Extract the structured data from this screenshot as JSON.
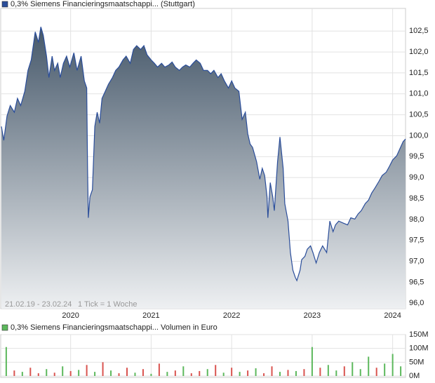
{
  "chart_data": [
    {
      "type": "area",
      "series": [
        {
          "name": "0,3% Siemens Financieringsmaatschappi... (Stuttgart)",
          "color": "#2a4d9a",
          "values": [
            100.22,
            99.89,
            100.47,
            100.72,
            100.56,
            100.89,
            100.72,
            101.06,
            101.56,
            101.81,
            102.48,
            102.23,
            102.6,
            102.4,
            101.9,
            101.39,
            101.9,
            101.56,
            101.73,
            101.39,
            101.73,
            101.9,
            101.64,
            101.98,
            101.56,
            101.9,
            101.31,
            101.14,
            99.22,
            98.04,
            98.54,
            98.71,
            100.22,
            100.56,
            100.3,
            100.89,
            101.06,
            101.23,
            101.39,
            101.56,
            101.64,
            101.81,
            101.9,
            101.73,
            102.06,
            102.15,
            102.06,
            102.15,
            101.93,
            101.81,
            101.73,
            101.64,
            101.73,
            101.64,
            101.69,
            101.76,
            101.64,
            101.56,
            101.64,
            101.69,
            101.64,
            101.73,
            101.81,
            101.73,
            101.56,
            101.56,
            101.48,
            101.56,
            101.39,
            101.48,
            101.31,
            101.14,
            101.31,
            101.14,
            101.06,
            100.39,
            100.56,
            100.05,
            99.8,
            99.72,
            99.38,
            98.96,
            99.22,
            99.05,
            98.54,
            98.04,
            98.88,
            98.54,
            98.21,
            99.38,
            99.97,
            99.22,
            98.38,
            97.96,
            97.21,
            96.79,
            96.62,
            96.54,
            96.79,
            97.04,
            97.12,
            97.29,
            97.37,
            97.21,
            96.96,
            97.21,
            97.37,
            97.21,
            97.96,
            97.71,
            97.87,
            97.96,
            97.91,
            97.87,
            98.04,
            98.01,
            98.13,
            98.21,
            98.38,
            98.46,
            98.63,
            98.75,
            98.91,
            99.05,
            99.13,
            99.27,
            99.42,
            99.52,
            99.69,
            99.86,
            99.92
          ]
        }
      ],
      "x": [
        2019.14,
        2019.17,
        2019.21,
        2019.25,
        2019.3,
        2019.34,
        2019.38,
        2019.43,
        2019.47,
        2019.51,
        2019.56,
        2019.6,
        2019.63,
        2019.66,
        2019.7,
        2019.73,
        2019.77,
        2019.8,
        2019.84,
        2019.87,
        2019.91,
        2019.95,
        2019.99,
        2020.04,
        2020.08,
        2020.13,
        2020.17,
        2020.2,
        2020.21,
        2020.22,
        2020.24,
        2020.27,
        2020.3,
        2020.33,
        2020.36,
        2020.39,
        2020.43,
        2020.47,
        2020.52,
        2020.56,
        2020.6,
        2020.65,
        2020.69,
        2020.74,
        2020.78,
        2020.82,
        2020.87,
        2020.91,
        2020.95,
        2021.0,
        2021.04,
        2021.08,
        2021.13,
        2021.17,
        2021.22,
        2021.26,
        2021.3,
        2021.35,
        2021.39,
        2021.43,
        2021.48,
        2021.52,
        2021.56,
        2021.61,
        2021.65,
        2021.7,
        2021.74,
        2021.78,
        2021.83,
        2021.87,
        2021.91,
        2021.96,
        2022.0,
        2022.04,
        2022.09,
        2022.13,
        2022.17,
        2022.2,
        2022.23,
        2022.26,
        2022.31,
        2022.35,
        2022.38,
        2022.41,
        2022.44,
        2022.45,
        2022.48,
        2022.51,
        2022.53,
        2022.57,
        2022.6,
        2022.64,
        2022.66,
        2022.7,
        2022.73,
        2022.76,
        2022.79,
        2022.81,
        2022.85,
        2022.87,
        2022.91,
        2022.94,
        2022.98,
        2023.01,
        2023.05,
        2023.09,
        2023.13,
        2023.18,
        2023.22,
        2023.26,
        2023.29,
        2023.33,
        2023.39,
        2023.44,
        2023.48,
        2023.53,
        2023.57,
        2023.61,
        2023.66,
        2023.7,
        2023.74,
        2023.78,
        2023.83,
        2023.87,
        2023.92,
        2023.96,
        2024.0,
        2024.05,
        2024.09,
        2024.13,
        2024.16
      ],
      "xlim": [
        2019.14,
        2024.16
      ],
      "xticks": [
        2020,
        2021,
        2022,
        2023,
        2024
      ],
      "show_xtick_labels": true,
      "ylim": [
        95.87,
        103.04
      ],
      "yticks": [
        {
          "value": 96.0,
          "label": "96,0"
        },
        {
          "value": 96.5,
          "label": "96,5"
        },
        {
          "value": 97.0,
          "label": "97,0"
        },
        {
          "value": 97.5,
          "label": "97,5"
        },
        {
          "value": 98.0,
          "label": "98,0"
        },
        {
          "value": 98.5,
          "label": "98,5"
        },
        {
          "value": 99.0,
          "label": "99,0"
        },
        {
          "value": 99.5,
          "label": "99,5"
        },
        {
          "value": 100.0,
          "label": "100,0"
        },
        {
          "value": 100.5,
          "label": "100,5"
        },
        {
          "value": 101.0,
          "label": "101,0"
        },
        {
          "value": 101.5,
          "label": "101,5"
        },
        {
          "value": 102.0,
          "label": "102,0"
        },
        {
          "value": 102.5,
          "label": "102,5"
        }
      ],
      "grid": true,
      "annotations": [
        "21.02.19 - 23.02.24",
        "1 Tick = 1 Woche"
      ]
    },
    {
      "type": "bar",
      "series": [
        {
          "name": "0,3% Siemens Financieringsmaatschappi... Volumen in Euro",
          "color": "#5cb85c",
          "values": [
            105,
            20,
            15,
            30,
            10,
            25,
            12,
            35,
            18,
            22,
            40,
            15,
            50,
            20,
            10,
            30,
            12,
            25,
            8,
            45,
            15,
            20,
            35,
            10,
            18,
            25,
            40,
            12,
            30,
            15,
            20,
            28,
            10,
            35,
            15,
            22,
            18,
            25,
            105,
            30,
            40,
            20,
            35,
            50,
            25,
            70,
            30,
            45,
            80,
            35
          ]
        }
      ],
      "bar_colors": [
        "#5cb85c",
        "#d9534f",
        "#5cb85c",
        "#d9534f",
        "#d9534f",
        "#5cb85c",
        "#d9534f",
        "#5cb85c",
        "#d9534f",
        "#5cb85c",
        "#d9534f",
        "#5cb85c",
        "#d9534f",
        "#5cb85c",
        "#d9534f",
        "#d9534f",
        "#5cb85c",
        "#d9534f",
        "#5cb85c",
        "#d9534f",
        "#5cb85c",
        "#d9534f",
        "#5cb85c",
        "#d9534f",
        "#d9534f",
        "#5cb85c",
        "#d9534f",
        "#5cb85c",
        "#d9534f",
        "#5cb85c",
        "#d9534f",
        "#5cb85c",
        "#d9534f",
        "#d9534f",
        "#5cb85c",
        "#d9534f",
        "#5cb85c",
        "#d9534f",
        "#5cb85c",
        "#d9534f",
        "#5cb85c",
        "#5cb85c",
        "#d9534f",
        "#5cb85c",
        "#5cb85c",
        "#5cb85c",
        "#d9534f",
        "#5cb85c",
        "#5cb85c",
        "#5cb85c"
      ],
      "x": [
        2019.2,
        2019.3,
        2019.4,
        2019.5,
        2019.6,
        2019.7,
        2019.8,
        2019.9,
        2020.0,
        2020.1,
        2020.2,
        2020.3,
        2020.4,
        2020.5,
        2020.6,
        2020.7,
        2020.8,
        2020.9,
        2021.0,
        2021.1,
        2021.2,
        2021.3,
        2021.4,
        2021.5,
        2021.6,
        2021.7,
        2021.8,
        2021.9,
        2022.0,
        2022.1,
        2022.2,
        2022.3,
        2022.4,
        2022.5,
        2022.6,
        2022.7,
        2022.8,
        2022.9,
        2023.0,
        2023.1,
        2023.2,
        2023.3,
        2023.4,
        2023.5,
        2023.6,
        2023.7,
        2023.8,
        2023.9,
        2024.0,
        2024.1
      ],
      "xlim": [
        2019.14,
        2024.16
      ],
      "xticks": [
        2020,
        2021,
        2022,
        2023,
        2024
      ],
      "show_xtick_labels": false,
      "ylim": [
        -5,
        150
      ],
      "yticks": [
        {
          "value": 0,
          "label": "0M"
        },
        {
          "value": 50,
          "label": "50M"
        },
        {
          "value": 100,
          "label": "100M"
        },
        {
          "value": 150,
          "label": "150M"
        }
      ],
      "grid": true
    }
  ]
}
